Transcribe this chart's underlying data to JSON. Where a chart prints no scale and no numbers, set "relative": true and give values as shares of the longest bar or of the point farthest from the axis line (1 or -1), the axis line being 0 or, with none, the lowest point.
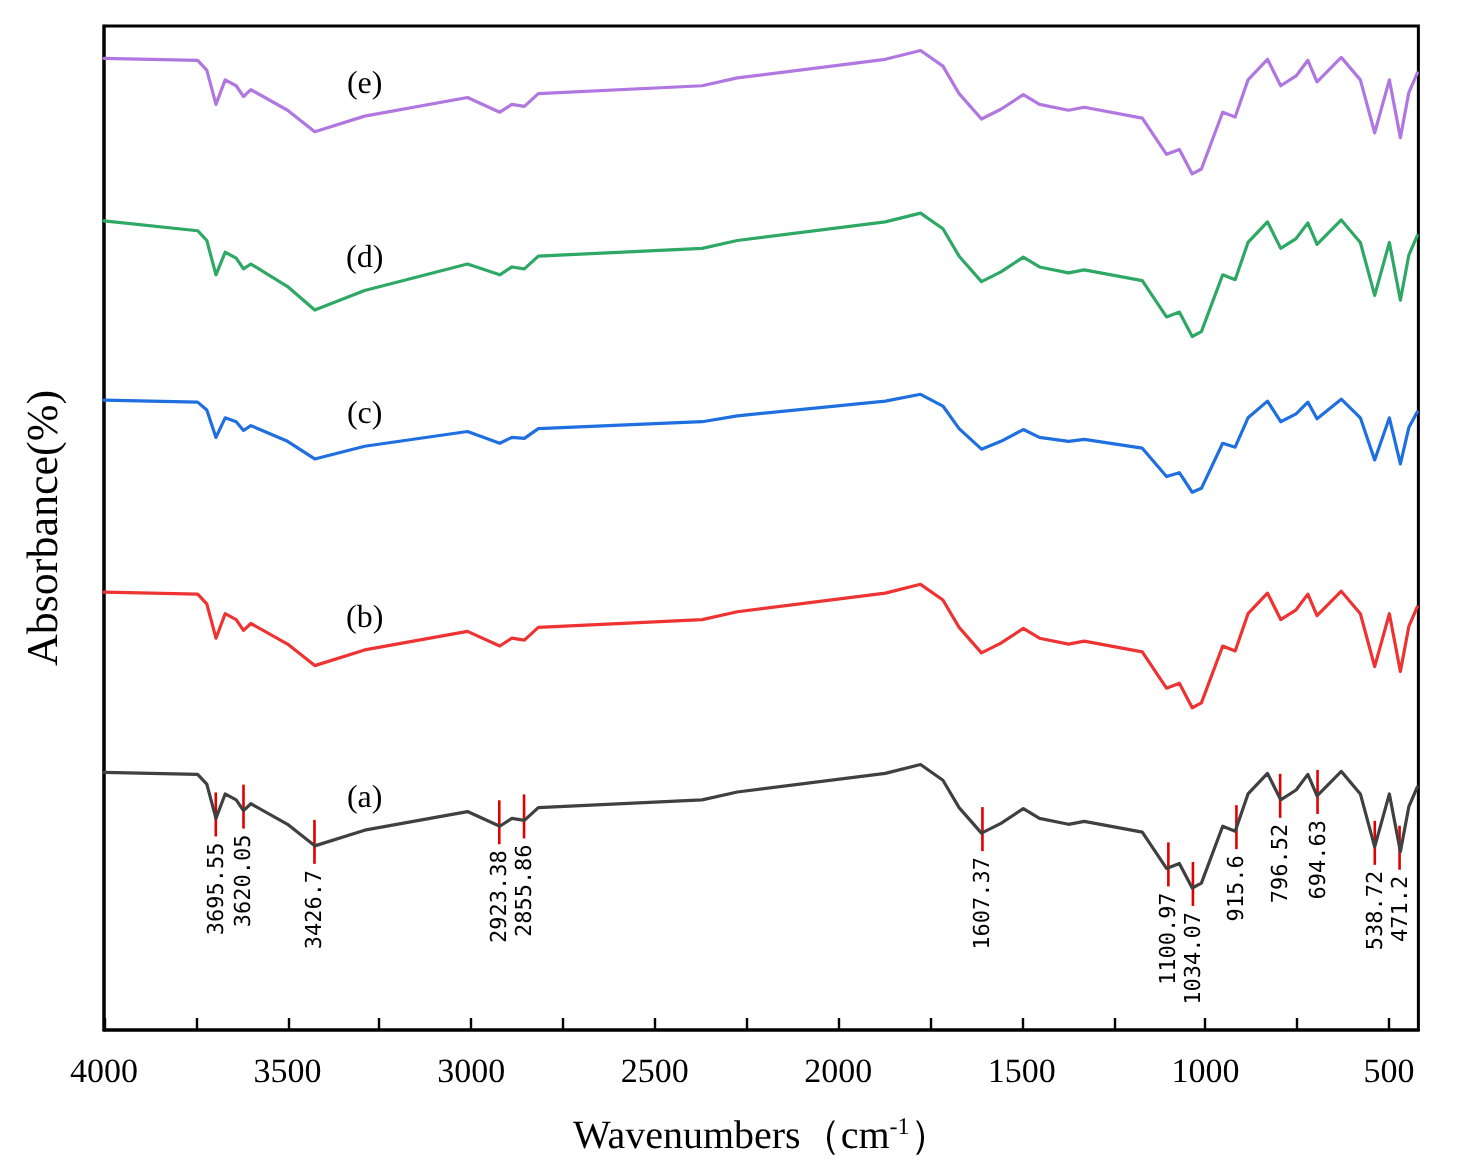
{
  "chart_data": {
    "type": "line",
    "xlabel": "Wavenumbers（cm$^{-1}$）",
    "ylabel": "Absorbance(%)",
    "relative": true,
    "x": [
      4000,
      3745,
      3720,
      3695,
      3670,
      3640,
      3620,
      3600,
      3500,
      3426,
      3290,
      3010,
      2922,
      2889,
      2855,
      2817,
      2371,
      2275,
      1872,
      1776,
      1715,
      1671,
      1610,
      1557,
      1496,
      1452,
      1373,
      1330,
      1172,
      1106,
      1071,
      1036,
      1011,
      953,
      919,
      884,
      831,
      795,
      753,
      721,
      696,
      630,
      578,
      539,
      499,
      469,
      446,
      423
    ],
    "series": [
      {
        "name": "(a)",
        "color": "#404040",
        "values": [
          0.263,
          0.261,
          0.251,
          0.216,
          0.241,
          0.235,
          0.224,
          0.231,
          0.21,
          0.188,
          0.204,
          0.223,
          0.208,
          0.216,
          0.214,
          0.227,
          0.235,
          0.243,
          0.262,
          0.271,
          0.255,
          0.227,
          0.201,
          0.211,
          0.226,
          0.216,
          0.21,
          0.213,
          0.202,
          0.165,
          0.17,
          0.145,
          0.15,
          0.208,
          0.203,
          0.241,
          0.262,
          0.235,
          0.245,
          0.261,
          0.239,
          0.264,
          0.241,
          0.187,
          0.241,
          0.182,
          0.228,
          0.248
        ]
      },
      {
        "name": "(b)",
        "color": "#ee3333",
        "values": [
          0.447,
          0.445,
          0.435,
          0.4,
          0.425,
          0.419,
          0.408,
          0.415,
          0.394,
          0.372,
          0.388,
          0.407,
          0.392,
          0.4,
          0.398,
          0.411,
          0.419,
          0.427,
          0.446,
          0.455,
          0.439,
          0.411,
          0.385,
          0.395,
          0.41,
          0.4,
          0.394,
          0.397,
          0.386,
          0.349,
          0.354,
          0.329,
          0.334,
          0.392,
          0.387,
          0.425,
          0.446,
          0.419,
          0.429,
          0.445,
          0.423,
          0.448,
          0.425,
          0.371,
          0.425,
          0.366,
          0.412,
          0.432
        ]
      },
      {
        "name": "(c)",
        "color": "#1f6fe0",
        "values": [
          0.643,
          0.641,
          0.633,
          0.605,
          0.625,
          0.621,
          0.612,
          0.617,
          0.601,
          0.583,
          0.596,
          0.611,
          0.599,
          0.605,
          0.604,
          0.614,
          0.621,
          0.627,
          0.642,
          0.649,
          0.637,
          0.614,
          0.593,
          0.601,
          0.613,
          0.605,
          0.601,
          0.603,
          0.594,
          0.565,
          0.569,
          0.549,
          0.553,
          0.599,
          0.595,
          0.625,
          0.642,
          0.621,
          0.629,
          0.641,
          0.624,
          0.644,
          0.625,
          0.582,
          0.625,
          0.578,
          0.615,
          0.631
        ]
      },
      {
        "name": "(d)",
        "color": "#2ea865",
        "values": [
          0.826,
          0.816,
          0.806,
          0.771,
          0.794,
          0.788,
          0.777,
          0.782,
          0.759,
          0.735,
          0.755,
          0.782,
          0.771,
          0.779,
          0.777,
          0.79,
          0.798,
          0.806,
          0.825,
          0.834,
          0.818,
          0.79,
          0.764,
          0.774,
          0.789,
          0.779,
          0.773,
          0.776,
          0.765,
          0.728,
          0.733,
          0.708,
          0.713,
          0.771,
          0.766,
          0.804,
          0.825,
          0.798,
          0.808,
          0.824,
          0.802,
          0.827,
          0.804,
          0.75,
          0.804,
          0.745,
          0.791,
          0.811
        ]
      },
      {
        "name": "(e)",
        "color": "#b077e0",
        "values": [
          0.992,
          0.99,
          0.98,
          0.945,
          0.97,
          0.964,
          0.953,
          0.96,
          0.939,
          0.917,
          0.933,
          0.952,
          0.937,
          0.945,
          0.943,
          0.956,
          0.964,
          0.972,
          0.991,
          1.0,
          0.984,
          0.956,
          0.93,
          0.94,
          0.955,
          0.945,
          0.939,
          0.942,
          0.931,
          0.894,
          0.899,
          0.874,
          0.879,
          0.937,
          0.932,
          0.97,
          0.991,
          0.964,
          0.974,
          0.99,
          0.968,
          0.993,
          0.97,
          0.916,
          0.97,
          0.911,
          0.957,
          0.977
        ]
      }
    ],
    "xlim": [
      4000,
      420
    ],
    "xticks": [
      4000,
      {
        "value": 3750,
        "label": null
      },
      3500,
      {
        "value": 3250,
        "label": null
      },
      3000,
      {
        "value": 2750,
        "label": null
      },
      2500,
      {
        "value": 2250,
        "label": null
      },
      2000,
      {
        "value": 1750,
        "label": null
      },
      1500,
      {
        "value": 1250,
        "label": null
      },
      1000,
      {
        "value": 750,
        "label": null
      },
      500
    ],
    "annotations": [
      {
        "text": "3695.55",
        "x": 3695.55,
        "y": 0.216
      },
      {
        "text": "3620.05",
        "x": 3620.05,
        "y": 0.224
      },
      {
        "text": "3426.7",
        "x": 3426.7,
        "y": 0.188
      },
      {
        "text": "2923.38",
        "x": 2923.38,
        "y": 0.208
      },
      {
        "text": "2855.86",
        "x": 2855.86,
        "y": 0.214
      },
      {
        "text": "1607.37",
        "x": 1607.37,
        "y": 0.201
      },
      {
        "text": "1100.97",
        "x": 1100.97,
        "y": 0.165
      },
      {
        "text": "1034.07",
        "x": 1034.07,
        "y": 0.145
      },
      {
        "text": "915.6",
        "x": 915.6,
        "y": 0.203
      },
      {
        "text": "796.52",
        "x": 796.52,
        "y": 0.235
      },
      {
        "text": "694.63",
        "x": 694.63,
        "y": 0.239
      },
      {
        "text": "538.72",
        "x": 538.72,
        "y": 0.187
      },
      {
        "text": "471.2",
        "x": 471.2,
        "y": 0.182
      }
    ],
    "grid": false,
    "legend": false,
    "marker": "none",
    "line_style": "solid"
  }
}
